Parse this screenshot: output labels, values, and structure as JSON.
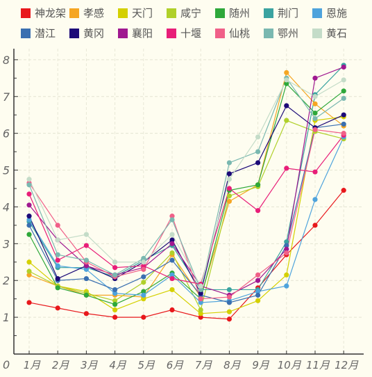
{
  "chart_data": {
    "type": "line",
    "categories": [
      "1月",
      "2月",
      "3月",
      "4月",
      "5月",
      "6月",
      "7月",
      "8月",
      "9月",
      "10月",
      "11月",
      "12月"
    ],
    "ylim": [
      0,
      8.3
    ],
    "yticks": [
      1,
      2,
      3,
      4,
      5,
      6,
      7,
      8
    ],
    "origin_label": "0",
    "grid": true,
    "legend_position": "top",
    "series": [
      {
        "name": "神龙架",
        "color": "#e8181c",
        "values": [
          1.4,
          1.25,
          1.1,
          1.0,
          1.0,
          1.2,
          1.0,
          0.95,
          1.8,
          2.7,
          3.5,
          4.45
        ]
      },
      {
        "name": "孝感",
        "color": "#f5a623",
        "values": [
          2.15,
          1.85,
          1.6,
          1.6,
          1.55,
          2.7,
          1.55,
          4.15,
          4.6,
          7.65,
          6.8,
          6.2
        ]
      },
      {
        "name": "天门",
        "color": "#d4d000",
        "values": [
          2.5,
          1.85,
          1.7,
          1.2,
          1.5,
          1.75,
          1.1,
          1.15,
          1.45,
          2.15,
          6.35,
          6.45
        ]
      },
      {
        "name": "咸宁",
        "color": "#b0d02a",
        "values": [
          2.25,
          1.85,
          1.65,
          1.45,
          1.95,
          2.75,
          1.2,
          4.3,
          4.55,
          6.35,
          6.05,
          5.85
        ]
      },
      {
        "name": "随州",
        "color": "#2ea83a",
        "values": [
          3.25,
          1.8,
          1.6,
          1.35,
          1.7,
          2.2,
          1.5,
          4.45,
          4.6,
          7.35,
          6.55,
          7.15
        ]
      },
      {
        "name": "荆门",
        "color": "#3aa3a0",
        "values": [
          3.6,
          2.35,
          2.35,
          2.1,
          2.55,
          2.95,
          1.75,
          1.75,
          1.75,
          3.05,
          7.05,
          7.85
        ]
      },
      {
        "name": "恩施",
        "color": "#4ea3dc",
        "values": [
          3.65,
          2.4,
          2.3,
          1.65,
          1.6,
          2.15,
          1.4,
          1.45,
          1.7,
          1.85,
          4.2,
          5.9
        ]
      },
      {
        "name": "潜江",
        "color": "#3a6fb0",
        "values": [
          3.5,
          2.0,
          2.05,
          1.75,
          2.1,
          2.55,
          1.6,
          1.4,
          1.6,
          2.95,
          6.15,
          6.25
        ]
      },
      {
        "name": "黄冈",
        "color": "#1c0a78",
        "values": [
          3.75,
          2.05,
          2.4,
          2.05,
          2.5,
          3.1,
          1.65,
          4.9,
          5.2,
          6.75,
          6.15,
          6.5
        ]
      },
      {
        "name": "襄阳",
        "color": "#a01890",
        "values": [
          4.05,
          3.1,
          2.4,
          2.15,
          2.35,
          3.0,
          1.85,
          1.6,
          2.0,
          2.85,
          7.5,
          7.8
        ]
      },
      {
        "name": "十堰",
        "color": "#e81e78",
        "values": [
          4.35,
          2.55,
          2.95,
          2.35,
          2.4,
          2.05,
          1.9,
          4.5,
          3.9,
          5.05,
          4.95,
          5.95
        ]
      },
      {
        "name": "仙桃",
        "color": "#f06088",
        "values": [
          4.65,
          3.5,
          2.5,
          2.1,
          2.3,
          3.75,
          1.5,
          1.55,
          2.15,
          2.75,
          6.1,
          6.0
        ]
      },
      {
        "name": "鄂州",
        "color": "#7ab8b0",
        "values": [
          4.6,
          2.7,
          2.55,
          2.15,
          2.6,
          3.65,
          1.75,
          5.2,
          5.5,
          7.5,
          6.4,
          6.95
        ]
      },
      {
        "name": "黄石",
        "color": "#c4dcc8",
        "values": [
          4.75,
          3.1,
          3.25,
          2.5,
          2.5,
          3.25,
          1.85,
          4.75,
          5.9,
          7.45,
          7.0,
          7.45
        ]
      }
    ]
  }
}
